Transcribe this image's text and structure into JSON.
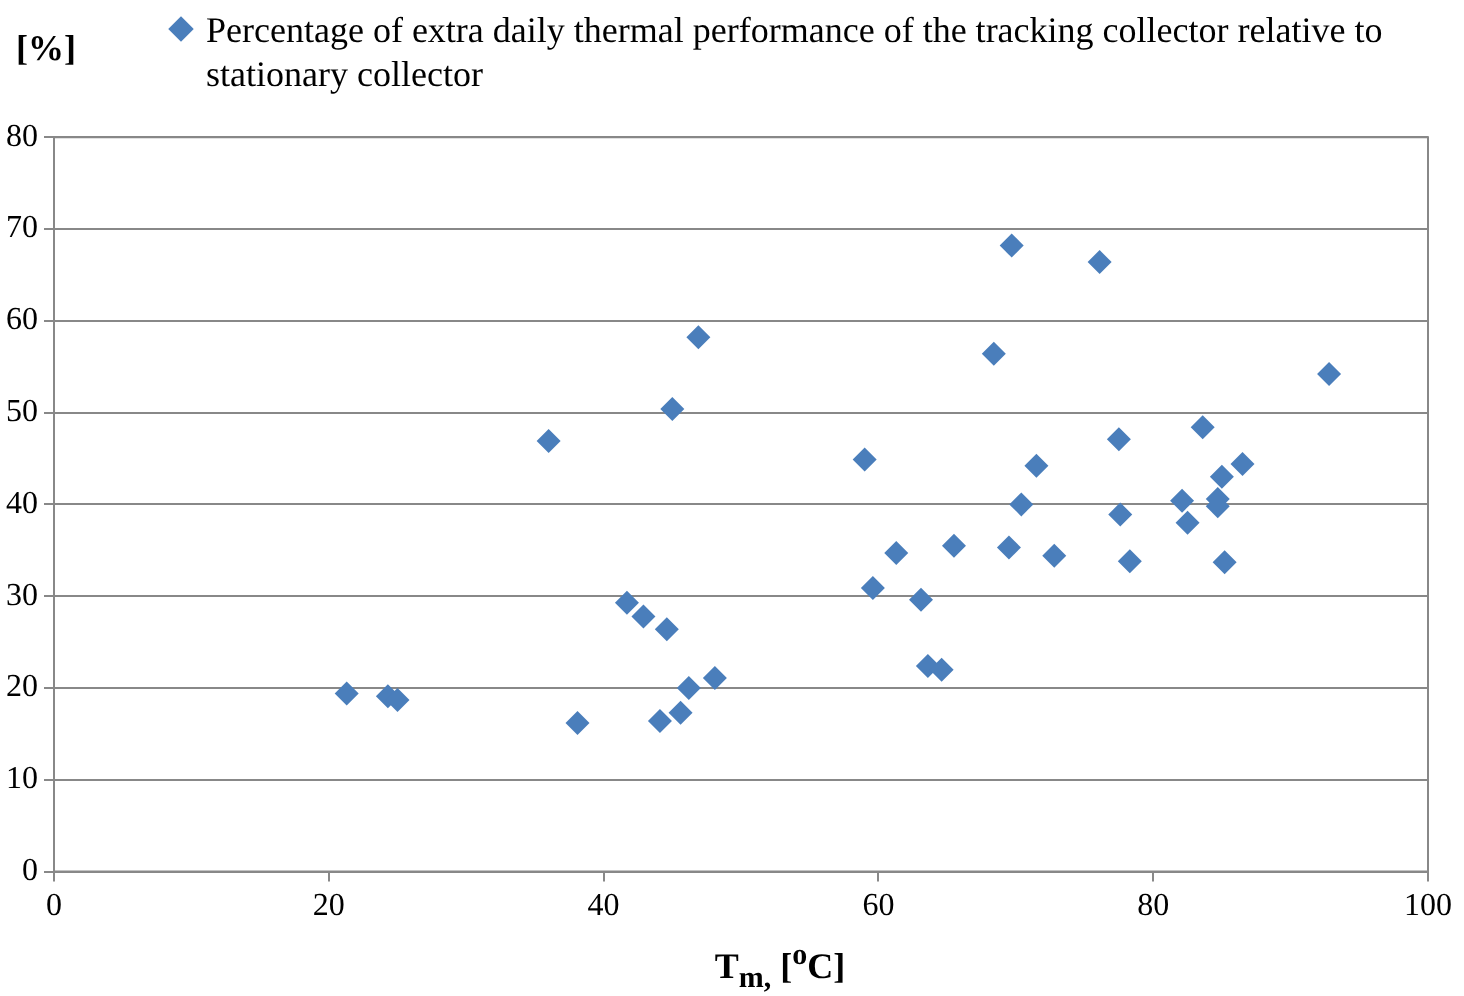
{
  "chart_data": {
    "type": "scatter",
    "xlabel": "T$_{m,}$ [$^{o}$C]",
    "ylabel": "[%]",
    "legend": "top",
    "grid": "y",
    "marker": "diamond",
    "xlim": [
      0,
      100
    ],
    "xticks": [
      0,
      20,
      40,
      60,
      80,
      100
    ],
    "ylim": [
      0,
      80
    ],
    "yticks": [
      0,
      10,
      20,
      30,
      40,
      50,
      60,
      70,
      80
    ],
    "series": [
      {
        "name": "Percentage of extra daily thermal performance of the tracking collector relative to stationary collector",
        "color": "#4a7ebb",
        "x": [
          21.3,
          24.3,
          25,
          36,
          38.1,
          41.7,
          42.9,
          44.6,
          44.1,
          45,
          45.6,
          46.2,
          46.9,
          48.1,
          59,
          59.6,
          61.3,
          63.1,
          63.6,
          64.6,
          65.5,
          68.4,
          69.7,
          69.5,
          70.4,
          71.5,
          72.8,
          76.1,
          77.5,
          77.6,
          78.3,
          82.1,
          82.5,
          83.6,
          84.7,
          84.7,
          85,
          85.2,
          86.5,
          92.8
        ],
        "values": [
          19.4,
          19.1,
          18.7,
          46.9,
          16.2,
          29.3,
          27.8,
          26.4,
          16.4,
          50.4,
          17.3,
          20,
          58.2,
          21.1,
          44.9,
          30.9,
          34.7,
          29.6,
          22.4,
          22,
          35.5,
          56.4,
          68.2,
          35.3,
          40,
          44.2,
          34.4,
          66.4,
          47.1,
          38.9,
          33.8,
          40.4,
          38,
          48.4,
          40.6,
          39.8,
          43,
          33.7,
          44.4,
          54.2
        ]
      }
    ]
  }
}
